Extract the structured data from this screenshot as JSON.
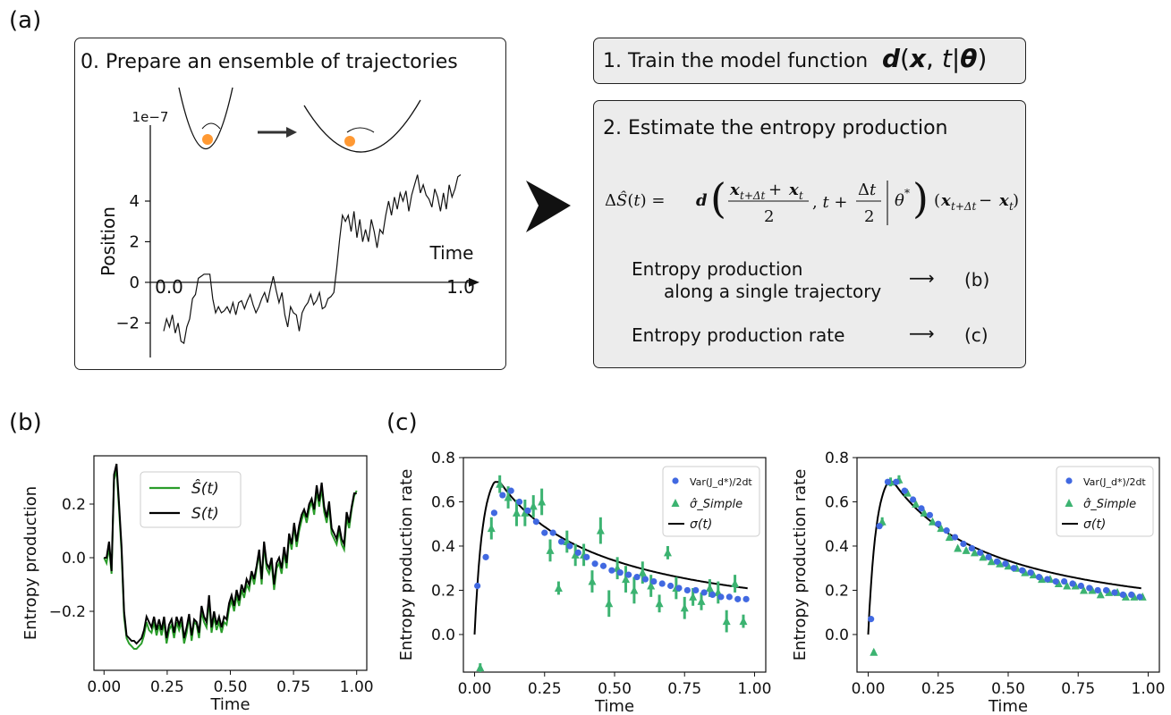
{
  "labels": {
    "a": "(a)",
    "b": "(b)",
    "c": "(c)"
  },
  "step0": {
    "title": "0. Prepare an ensemble of trajectories"
  },
  "step1": {
    "title": "1. Train the model function",
    "formula": "d(x, t|θ)"
  },
  "step2": {
    "title": "2. Estimate the entropy production",
    "formula": "ΔŜ(t) = d((x_{t+Δt} + x_t)/2, t + Δt/2 | θ*) (x_{t+Δt} − x_t)",
    "row1_line1": "Entropy production",
    "row1_line2": "along a single trajectory",
    "row1_target": "(b)",
    "row2": "Entropy production rate",
    "row2_target": "(c)"
  },
  "colors": {
    "green": "#2a9d2a",
    "black": "#000000",
    "blue": "#4169e1",
    "teal": "#3cb371",
    "orange": "#ff9933",
    "grey_box": "#ececec"
  },
  "chart_data": [
    {
      "type": "line",
      "id": "a-trajectory",
      "xlabel": "Time",
      "ylabel": "Position",
      "exponent_label": "1e−7",
      "x_ticks": [
        "0.0",
        "1.0"
      ],
      "y_ticks": [
        "−2",
        "0",
        "2",
        "4"
      ],
      "xlim": [
        0,
        1
      ],
      "ylim": [
        -3.7,
        6.2
      ],
      "y": [
        -2.4,
        -1.8,
        -2.2,
        -1.6,
        -2.5,
        -2.0,
        -2.9,
        -3.0,
        -2.2,
        -1.8,
        -0.8,
        -0.6,
        0.2,
        0.3,
        0.4,
        0.4,
        0.4,
        -0.8,
        -1.5,
        -1.2,
        -1.5,
        -1.4,
        -1.2,
        -1.5,
        -1.0,
        -1.6,
        -1.0,
        -0.9,
        -1.3,
        -0.9,
        -0.6,
        -1.1,
        -1.5,
        -1.2,
        -0.8,
        -0.5,
        -1.0,
        -0.3,
        0.3,
        -0.4,
        -1.0,
        -0.5,
        -1.6,
        -2.2,
        -1.2,
        -1.5,
        -1.6,
        -2.4,
        -1.5,
        -1.2,
        -1.0,
        -0.6,
        -1.1,
        -0.9,
        -0.5,
        -1.3,
        -1.2,
        -0.8,
        -0.7,
        -0.5,
        0.7,
        2.1,
        3.3,
        3.0,
        3.3,
        2.5,
        3.5,
        2.2,
        3.1,
        2.0,
        2.6,
        2.0,
        3.1,
        2.5,
        1.7,
        2.6,
        2.4,
        3.3,
        4.0,
        3.3,
        4.2,
        3.6,
        4.4,
        4.0,
        4.5,
        3.5,
        4.3,
        4.8,
        5.3,
        4.4,
        4.8,
        4.3,
        4.1,
        3.7,
        4.6,
        4.2,
        3.5,
        4.4,
        3.6,
        4.8,
        4.2,
        4.6,
        5.2,
        5.3
      ],
      "inset": {
        "arrow": "→",
        "particle_color": "#ff9933"
      }
    },
    {
      "type": "line",
      "id": "b-entropy-production",
      "xlabel": "Time",
      "ylabel": "Entropy production",
      "x_ticks": [
        "0.00",
        "0.25",
        "0.50",
        "0.75",
        "1.00"
      ],
      "y_ticks": [
        "−0.2",
        "0.0",
        "0.2"
      ],
      "xlim": [
        -0.04,
        1.04
      ],
      "ylim": [
        -0.42,
        0.38
      ],
      "legend": [
        "Ŝ(t)",
        "S(t)"
      ],
      "series": [
        {
          "name": "Ŝ(t)",
          "color": "#2a9d2a",
          "values": [
            0.0,
            -0.02,
            0.04,
            -0.06,
            0.29,
            0.33,
            0.18,
            0.02,
            -0.22,
            -0.3,
            -0.32,
            -0.33,
            -0.34,
            -0.34,
            -0.33,
            -0.32,
            -0.29,
            -0.24,
            -0.27,
            -0.28,
            -0.24,
            -0.29,
            -0.25,
            -0.29,
            -0.24,
            -0.32,
            -0.27,
            -0.25,
            -0.3,
            -0.24,
            -0.27,
            -0.24,
            -0.32,
            -0.28,
            -0.22,
            -0.31,
            -0.24,
            -0.25,
            -0.3,
            -0.2,
            -0.24,
            -0.26,
            -0.16,
            -0.28,
            -0.22,
            -0.27,
            -0.24,
            -0.28,
            -0.24,
            -0.25,
            -0.19,
            -0.16,
            -0.2,
            -0.14,
            -0.18,
            -0.12,
            -0.15,
            -0.1,
            -0.12,
            -0.06,
            -0.1,
            -0.04,
            0.02,
            -0.1,
            0.05,
            -0.04,
            -0.06,
            -0.02,
            -0.12,
            -0.04,
            -0.02,
            -0.06,
            0.02,
            -0.04,
            0.08,
            0.03,
            0.12,
            0.04,
            0.1,
            0.14,
            0.17,
            0.13,
            0.18,
            0.21,
            0.16,
            0.25,
            0.19,
            0.26,
            0.17,
            0.13,
            0.19,
            0.09,
            0.07,
            0.05,
            0.1,
            0.05,
            0.03,
            0.15,
            0.11,
            0.18,
            0.23,
            0.25
          ]
        },
        {
          "name": "S(t)",
          "color": "#000000",
          "values": [
            0.0,
            0.0,
            0.06,
            -0.05,
            0.31,
            0.35,
            0.2,
            0.04,
            -0.2,
            -0.29,
            -0.3,
            -0.31,
            -0.31,
            -0.32,
            -0.31,
            -0.3,
            -0.27,
            -0.22,
            -0.24,
            -0.26,
            -0.22,
            -0.27,
            -0.23,
            -0.27,
            -0.22,
            -0.3,
            -0.25,
            -0.23,
            -0.28,
            -0.22,
            -0.25,
            -0.22,
            -0.3,
            -0.26,
            -0.21,
            -0.29,
            -0.23,
            -0.24,
            -0.28,
            -0.18,
            -0.22,
            -0.24,
            -0.14,
            -0.26,
            -0.2,
            -0.25,
            -0.22,
            -0.26,
            -0.22,
            -0.23,
            -0.17,
            -0.14,
            -0.18,
            -0.12,
            -0.16,
            -0.1,
            -0.13,
            -0.08,
            -0.1,
            -0.05,
            -0.08,
            -0.03,
            0.03,
            -0.08,
            0.06,
            -0.02,
            -0.04,
            0.0,
            -0.1,
            -0.02,
            0.0,
            -0.04,
            0.04,
            -0.02,
            0.09,
            0.05,
            0.13,
            0.06,
            0.12,
            0.16,
            0.18,
            0.15,
            0.2,
            0.22,
            0.18,
            0.27,
            0.21,
            0.28,
            0.19,
            0.15,
            0.21,
            0.11,
            0.09,
            0.07,
            0.12,
            0.07,
            0.05,
            0.17,
            0.13,
            0.19,
            0.24,
            0.24
          ]
        }
      ]
    },
    {
      "type": "scatter",
      "id": "c-left",
      "xlabel": "Time",
      "ylabel": "Entropy production rate",
      "x_ticks": [
        "0.00",
        "0.25",
        "0.50",
        "0.75",
        "1.00"
      ],
      "y_ticks": [
        "0.0",
        "0.2",
        "0.4",
        "0.6",
        "0.8"
      ],
      "xlim": [
        -0.04,
        1.04
      ],
      "ylim": [
        -0.17,
        0.8
      ],
      "legend": [
        "Var(J_d*)/2dt",
        "σ̂_Simple",
        "σ(t)"
      ],
      "series": [
        {
          "name": "Var(J_d*)/2dt",
          "color": "#4169e1",
          "x": [
            0.01,
            0.04,
            0.07,
            0.1,
            0.13,
            0.16,
            0.19,
            0.22,
            0.25,
            0.28,
            0.31,
            0.34,
            0.37,
            0.4,
            0.43,
            0.46,
            0.49,
            0.52,
            0.55,
            0.58,
            0.61,
            0.64,
            0.67,
            0.7,
            0.73,
            0.76,
            0.79,
            0.82,
            0.85,
            0.88,
            0.91,
            0.94,
            0.97
          ],
          "y": [
            0.22,
            0.35,
            0.55,
            0.63,
            0.65,
            0.6,
            0.56,
            0.51,
            0.46,
            0.46,
            0.42,
            0.4,
            0.37,
            0.35,
            0.32,
            0.31,
            0.29,
            0.28,
            0.27,
            0.26,
            0.25,
            0.24,
            0.23,
            0.22,
            0.21,
            0.2,
            0.2,
            0.19,
            0.18,
            0.17,
            0.17,
            0.16,
            0.16
          ]
        },
        {
          "name": "σ̂_Simple",
          "color": "#3cb371",
          "x": [
            0.02,
            0.06,
            0.09,
            0.12,
            0.15,
            0.18,
            0.21,
            0.24,
            0.27,
            0.3,
            0.33,
            0.36,
            0.39,
            0.42,
            0.45,
            0.48,
            0.51,
            0.54,
            0.57,
            0.6,
            0.63,
            0.66,
            0.69,
            0.72,
            0.75,
            0.78,
            0.81,
            0.84,
            0.87,
            0.9,
            0.93,
            0.96
          ],
          "y": [
            -0.15,
            0.48,
            0.68,
            0.62,
            0.55,
            0.55,
            0.58,
            0.6,
            0.38,
            0.21,
            0.42,
            0.36,
            0.36,
            0.24,
            0.47,
            0.14,
            0.3,
            0.25,
            0.2,
            0.28,
            0.22,
            0.14,
            0.37,
            0.21,
            0.12,
            0.17,
            0.15,
            0.21,
            0.19,
            0.06,
            0.23,
            0.06
          ],
          "err": [
            0.02,
            0.05,
            0.04,
            0.05,
            0.06,
            0.06,
            0.05,
            0.06,
            0.05,
            0.03,
            0.05,
            0.05,
            0.05,
            0.05,
            0.06,
            0.06,
            0.05,
            0.06,
            0.06,
            0.05,
            0.05,
            0.04,
            0.03,
            0.05,
            0.05,
            0.04,
            0.04,
            0.04,
            0.05,
            0.05,
            0.04,
            0.03
          ]
        },
        {
          "name": "σ(t)",
          "color": "#000000",
          "curve": true
        }
      ]
    },
    {
      "type": "scatter",
      "id": "c-right",
      "xlabel": "Time",
      "ylabel": "Entropy production rate",
      "x_ticks": [
        "0.00",
        "0.25",
        "0.50",
        "0.75",
        "1.00"
      ],
      "y_ticks": [
        "0.0",
        "0.2",
        "0.4",
        "0.6",
        "0.8"
      ],
      "xlim": [
        -0.04,
        1.04
      ],
      "ylim": [
        -0.17,
        0.8
      ],
      "legend": [
        "Var(J_d*)/2dt",
        "σ̂_Simple",
        "σ(t)"
      ],
      "series": [
        {
          "name": "Var(J_d*)/2dt",
          "color": "#4169e1",
          "x": [
            0.01,
            0.04,
            0.07,
            0.1,
            0.13,
            0.16,
            0.19,
            0.22,
            0.25,
            0.28,
            0.31,
            0.34,
            0.37,
            0.4,
            0.43,
            0.46,
            0.49,
            0.52,
            0.55,
            0.58,
            0.61,
            0.64,
            0.67,
            0.7,
            0.73,
            0.76,
            0.79,
            0.82,
            0.85,
            0.88,
            0.91,
            0.94,
            0.97
          ],
          "y": [
            0.07,
            0.49,
            0.69,
            0.69,
            0.65,
            0.61,
            0.57,
            0.54,
            0.5,
            0.47,
            0.44,
            0.41,
            0.39,
            0.37,
            0.35,
            0.33,
            0.32,
            0.3,
            0.29,
            0.28,
            0.26,
            0.25,
            0.24,
            0.24,
            0.23,
            0.22,
            0.21,
            0.2,
            0.2,
            0.19,
            0.18,
            0.18,
            0.17
          ]
        },
        {
          "name": "σ̂_Simple",
          "color": "#3cb371",
          "x": [
            0.02,
            0.05,
            0.08,
            0.11,
            0.14,
            0.17,
            0.2,
            0.23,
            0.26,
            0.29,
            0.32,
            0.35,
            0.38,
            0.41,
            0.44,
            0.47,
            0.5,
            0.53,
            0.56,
            0.59,
            0.62,
            0.65,
            0.68,
            0.71,
            0.74,
            0.77,
            0.8,
            0.83,
            0.86,
            0.89,
            0.92,
            0.95,
            0.98
          ],
          "y": [
            -0.08,
            0.51,
            0.69,
            0.7,
            0.64,
            0.59,
            0.55,
            0.51,
            0.48,
            0.44,
            0.39,
            0.38,
            0.37,
            0.35,
            0.33,
            0.32,
            0.31,
            0.3,
            0.28,
            0.27,
            0.25,
            0.25,
            0.23,
            0.22,
            0.22,
            0.2,
            0.2,
            0.18,
            0.19,
            0.19,
            0.17,
            0.17,
            0.17
          ],
          "err": [
            0.01,
            0.02,
            0.02,
            0.02,
            0.01,
            0.01,
            0.01,
            0.01,
            0.01,
            0.01,
            0.01,
            0.01,
            0.01,
            0.01,
            0.01,
            0.01,
            0.01,
            0.01,
            0.01,
            0.01,
            0.01,
            0.01,
            0.01,
            0.01,
            0.01,
            0.01,
            0.01,
            0.01,
            0.01,
            0.01,
            0.01,
            0.01,
            0.01
          ]
        },
        {
          "name": "σ(t)",
          "color": "#000000",
          "curve": true
        }
      ]
    }
  ]
}
